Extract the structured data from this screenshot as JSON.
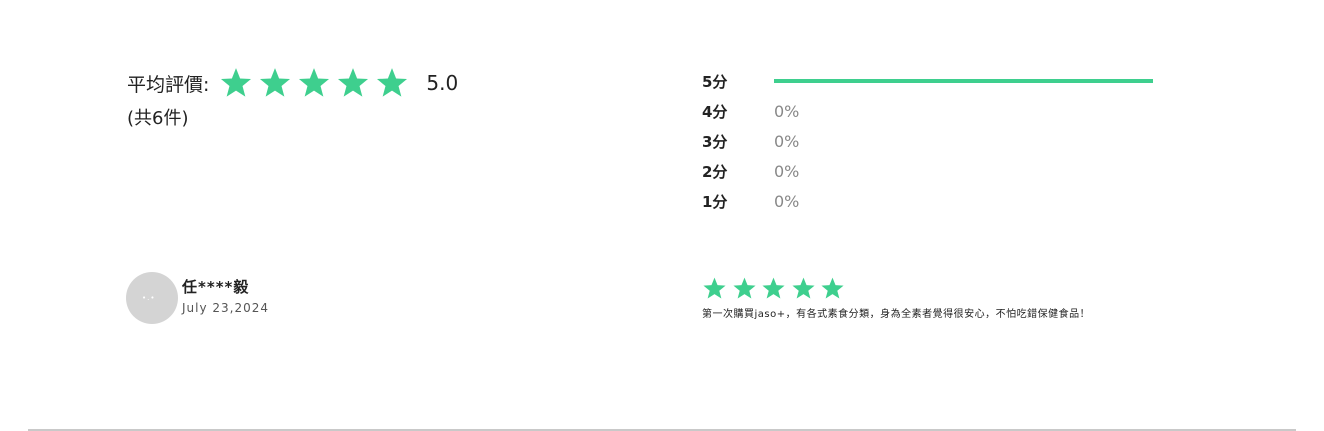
{
  "summary": {
    "avg_label": "平均評價:",
    "avg_value": "5.0",
    "total_count": "(共6件)",
    "star_rating": 5,
    "star_color": "#3ecf8e",
    "star_icon": "star-icon"
  },
  "distribution": {
    "rows": [
      {
        "label": "5分",
        "fraction": 1.0
      },
      {
        "label": "4分",
        "percent_text": "0%"
      },
      {
        "label": "3分",
        "percent_text": "0%"
      },
      {
        "label": "2分",
        "percent_text": "0%"
      },
      {
        "label": "1分",
        "percent_text": "0%"
      }
    ],
    "bar_color": "#3ecf8e"
  },
  "review": {
    "reviewer_name": "任****毅",
    "date": "July 23,2024",
    "stars": 5,
    "text": "第一次購買jaso+，有各式素食分類，身為全素者覺得很安心，不怕吃錯保健食品！",
    "avatar_color": "#d4d4d4"
  }
}
